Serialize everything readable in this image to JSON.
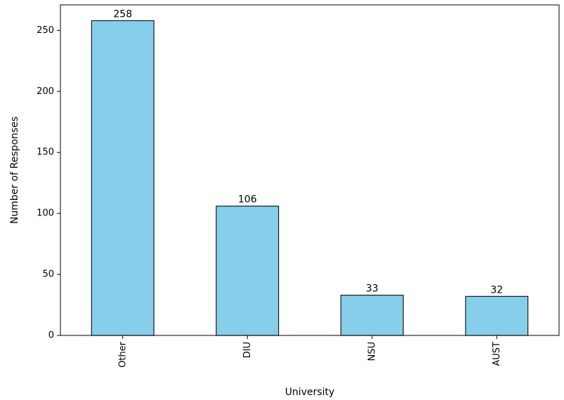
{
  "chart_data": {
    "type": "bar",
    "categories": [
      "Other",
      "DIU",
      "NSU",
      "AUST"
    ],
    "values": [
      258,
      106,
      33,
      32
    ],
    "data_labels": [
      "258",
      "106",
      "33",
      "32"
    ],
    "title": "",
    "xlabel": "University",
    "ylabel": "Number of Responses",
    "ylim": [
      0,
      270.9
    ],
    "y_ticks": [
      0,
      50,
      100,
      150,
      200,
      250
    ],
    "x_tick_rotation": "vertical",
    "grid": false,
    "legend": "none",
    "colors": {
      "bar": "#87ceeb",
      "edge": "#1a1a1a",
      "axis": "#000000"
    }
  }
}
